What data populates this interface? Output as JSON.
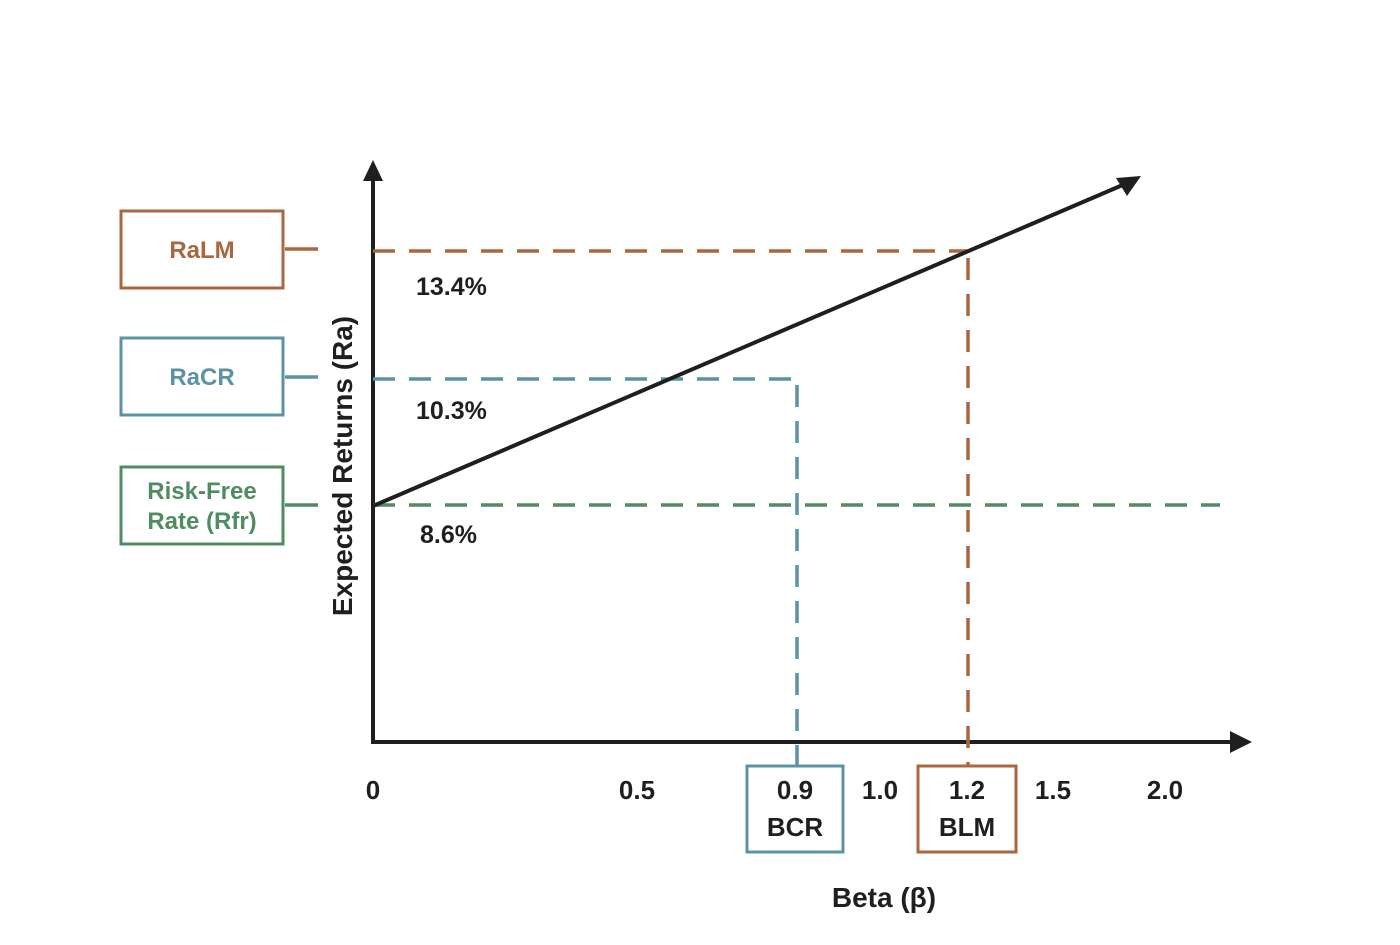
{
  "axes": {
    "y_label": "Expected Returns (Ra)",
    "x_label": "Beta (β)",
    "x_ticks": [
      "0",
      "0.5",
      "1.0",
      "1.5",
      "2.0"
    ]
  },
  "y_values": {
    "ralm": "13.4%",
    "racr": "10.3%",
    "rfr": "8.6%"
  },
  "side_boxes": {
    "ralm": "RaLM",
    "racr": "RaCR",
    "rfr_line1": "Risk-Free",
    "rfr_line2": "Rate (Rfr)"
  },
  "x_boxes": {
    "bcr_value": "0.9",
    "bcr_label": "BCR",
    "blm_value": "1.2",
    "blm_label": "BLM"
  },
  "colors": {
    "ralm": "#a8673f",
    "racr": "#5b93a4",
    "rfr": "#4f8c61",
    "axis": "#1f1f1f",
    "text": "#1f1f1f"
  }
}
